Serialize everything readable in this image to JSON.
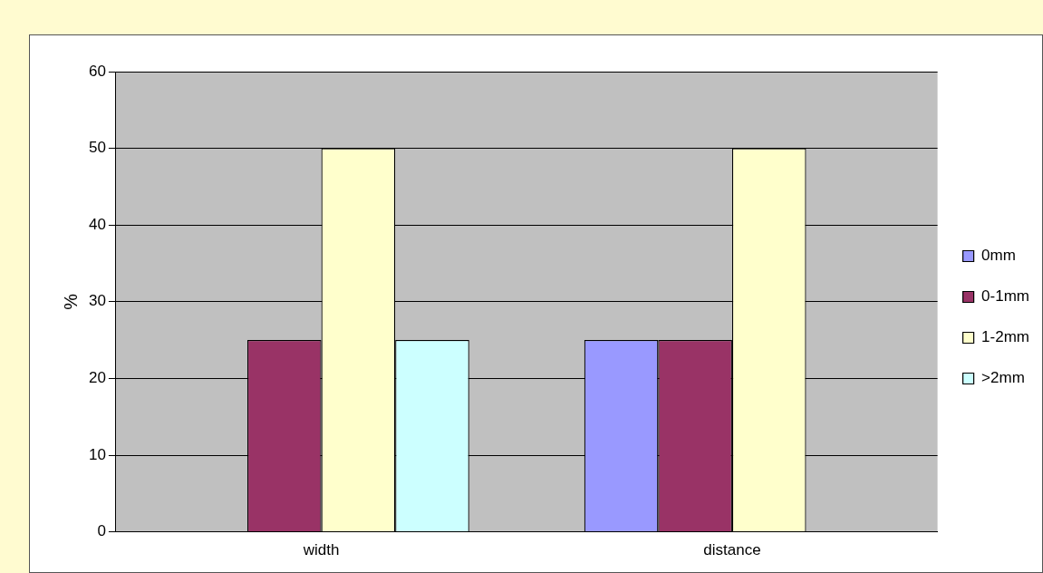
{
  "chart_data": {
    "type": "bar",
    "ylabel": "%",
    "categories": [
      "width",
      "distance"
    ],
    "series": [
      {
        "name": "0mm",
        "color": "#9999ff",
        "values": [
          0,
          25
        ]
      },
      {
        "name": "0-1mm",
        "color": "#993366",
        "values": [
          25,
          25
        ]
      },
      {
        "name": "1-2mm",
        "color": "#ffffcc",
        "values": [
          50,
          50
        ]
      },
      {
        "name": ">2mm",
        "color": "#ccffff",
        "values": [
          25,
          0
        ]
      }
    ],
    "ylim": [
      0,
      60
    ],
    "yticks": [
      0,
      10,
      20,
      30,
      40,
      50,
      60
    ],
    "grid": "y",
    "legend": "right"
  }
}
